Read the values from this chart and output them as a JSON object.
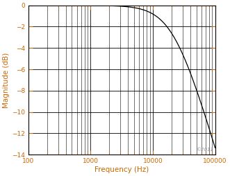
{
  "xmin": 100,
  "xmax": 100000,
  "ymin": -14,
  "ymax": 0,
  "xlabel": "Frequency (Hz)",
  "ylabel": "Magnitude (dB)",
  "yticks": [
    0,
    -2,
    -4,
    -6,
    -8,
    -10,
    -12,
    -14
  ],
  "xtick_labels": [
    "100",
    "1000",
    "10000",
    "100000"
  ],
  "xtick_positions": [
    100,
    1000,
    10000,
    100000
  ],
  "cutoff_freq": 22000,
  "line_color": "#000000",
  "label_color": "#cc6600",
  "grid_color": "#000000",
  "background_color": "#ffffff",
  "watermark": "©2011",
  "fig_width": 3.31,
  "fig_height": 2.54,
  "dpi": 100,
  "tick_label_fontsize": 6.5,
  "axis_label_fontsize": 7.5
}
